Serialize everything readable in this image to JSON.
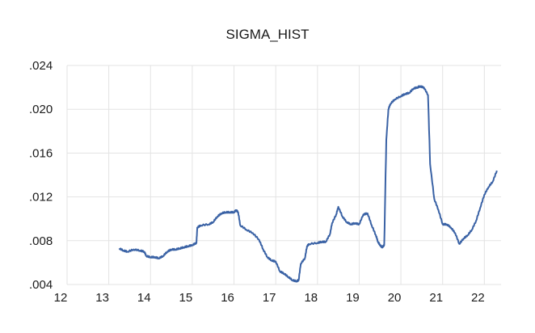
{
  "chart_data": {
    "type": "line",
    "title": "SIGMA_HIST",
    "xlabel": "",
    "ylabel": "",
    "xlim": [
      12,
      22.4
    ],
    "ylim": [
      0.004,
      0.024
    ],
    "x_ticks": [
      12,
      13,
      14,
      15,
      16,
      17,
      18,
      19,
      20,
      21,
      22
    ],
    "x_tick_labels": [
      "12",
      "13",
      "14",
      "15",
      "16",
      "17",
      "18",
      "19",
      "20",
      "21",
      "22"
    ],
    "y_ticks": [
      0.004,
      0.008,
      0.012,
      0.016,
      0.02,
      0.024
    ],
    "y_tick_labels": [
      ".004",
      ".008",
      ".012",
      ".016",
      ".020",
      ".024"
    ],
    "grid": true,
    "legend": "none",
    "line_color": "#3a62a5",
    "series": [
      {
        "x": [
          13.25,
          13.35,
          13.45,
          13.6,
          13.75,
          13.85,
          13.9,
          14.0,
          14.1,
          14.2,
          14.3,
          14.4,
          14.5,
          14.6,
          14.7,
          14.8,
          14.9,
          15.0,
          15.1,
          15.12,
          15.2,
          15.4,
          15.5,
          15.6,
          15.7,
          15.8,
          15.9,
          16.0,
          16.05,
          16.1,
          16.15,
          16.3,
          16.45,
          16.6,
          16.7,
          16.8,
          16.9,
          17.0,
          17.1,
          17.2,
          17.3,
          17.4,
          17.5,
          17.55,
          17.6,
          17.7,
          17.75,
          17.8,
          18.0,
          18.1,
          18.2,
          18.3,
          18.35,
          18.45,
          18.5,
          18.6,
          18.7,
          18.8,
          18.9,
          19.0,
          19.1,
          19.2,
          19.3,
          19.4,
          19.45,
          19.5,
          19.55,
          19.6,
          19.65,
          19.7,
          19.75,
          19.85,
          20.0,
          20.1,
          20.2,
          20.3,
          20.4,
          20.45,
          20.55,
          20.65,
          20.7,
          20.8,
          20.9,
          21.0,
          21.1,
          21.2,
          21.3,
          21.4,
          21.5,
          21.6,
          21.7,
          21.8,
          21.9,
          22.0,
          22.1,
          22.2,
          22.3
        ],
        "y": [
          0.0073,
          0.0071,
          0.007,
          0.0072,
          0.0071,
          0.007,
          0.0066,
          0.0065,
          0.0065,
          0.0064,
          0.0066,
          0.007,
          0.0072,
          0.0072,
          0.0073,
          0.0074,
          0.0075,
          0.0076,
          0.0078,
          0.0092,
          0.0094,
          0.0095,
          0.0097,
          0.0102,
          0.0105,
          0.0106,
          0.0106,
          0.0106,
          0.0108,
          0.0106,
          0.0094,
          0.009,
          0.0087,
          0.0081,
          0.0072,
          0.0065,
          0.0062,
          0.0061,
          0.0052,
          0.005,
          0.0047,
          0.0044,
          0.0043,
          0.0044,
          0.0059,
          0.0064,
          0.0075,
          0.0077,
          0.0078,
          0.0079,
          0.0079,
          0.0086,
          0.0096,
          0.0104,
          0.0111,
          0.0102,
          0.0097,
          0.0095,
          0.0096,
          0.0095,
          0.0104,
          0.0105,
          0.0094,
          0.0085,
          0.0079,
          0.0076,
          0.0074,
          0.0076,
          0.0172,
          0.02,
          0.0205,
          0.0209,
          0.0212,
          0.0214,
          0.0215,
          0.0219,
          0.022,
          0.0221,
          0.022,
          0.0213,
          0.015,
          0.0118,
          0.0108,
          0.0095,
          0.0095,
          0.0092,
          0.0087,
          0.0077,
          0.0082,
          0.0085,
          0.009,
          0.0098,
          0.011,
          0.0122,
          0.0129,
          0.0134,
          0.0144
        ]
      }
    ]
  }
}
